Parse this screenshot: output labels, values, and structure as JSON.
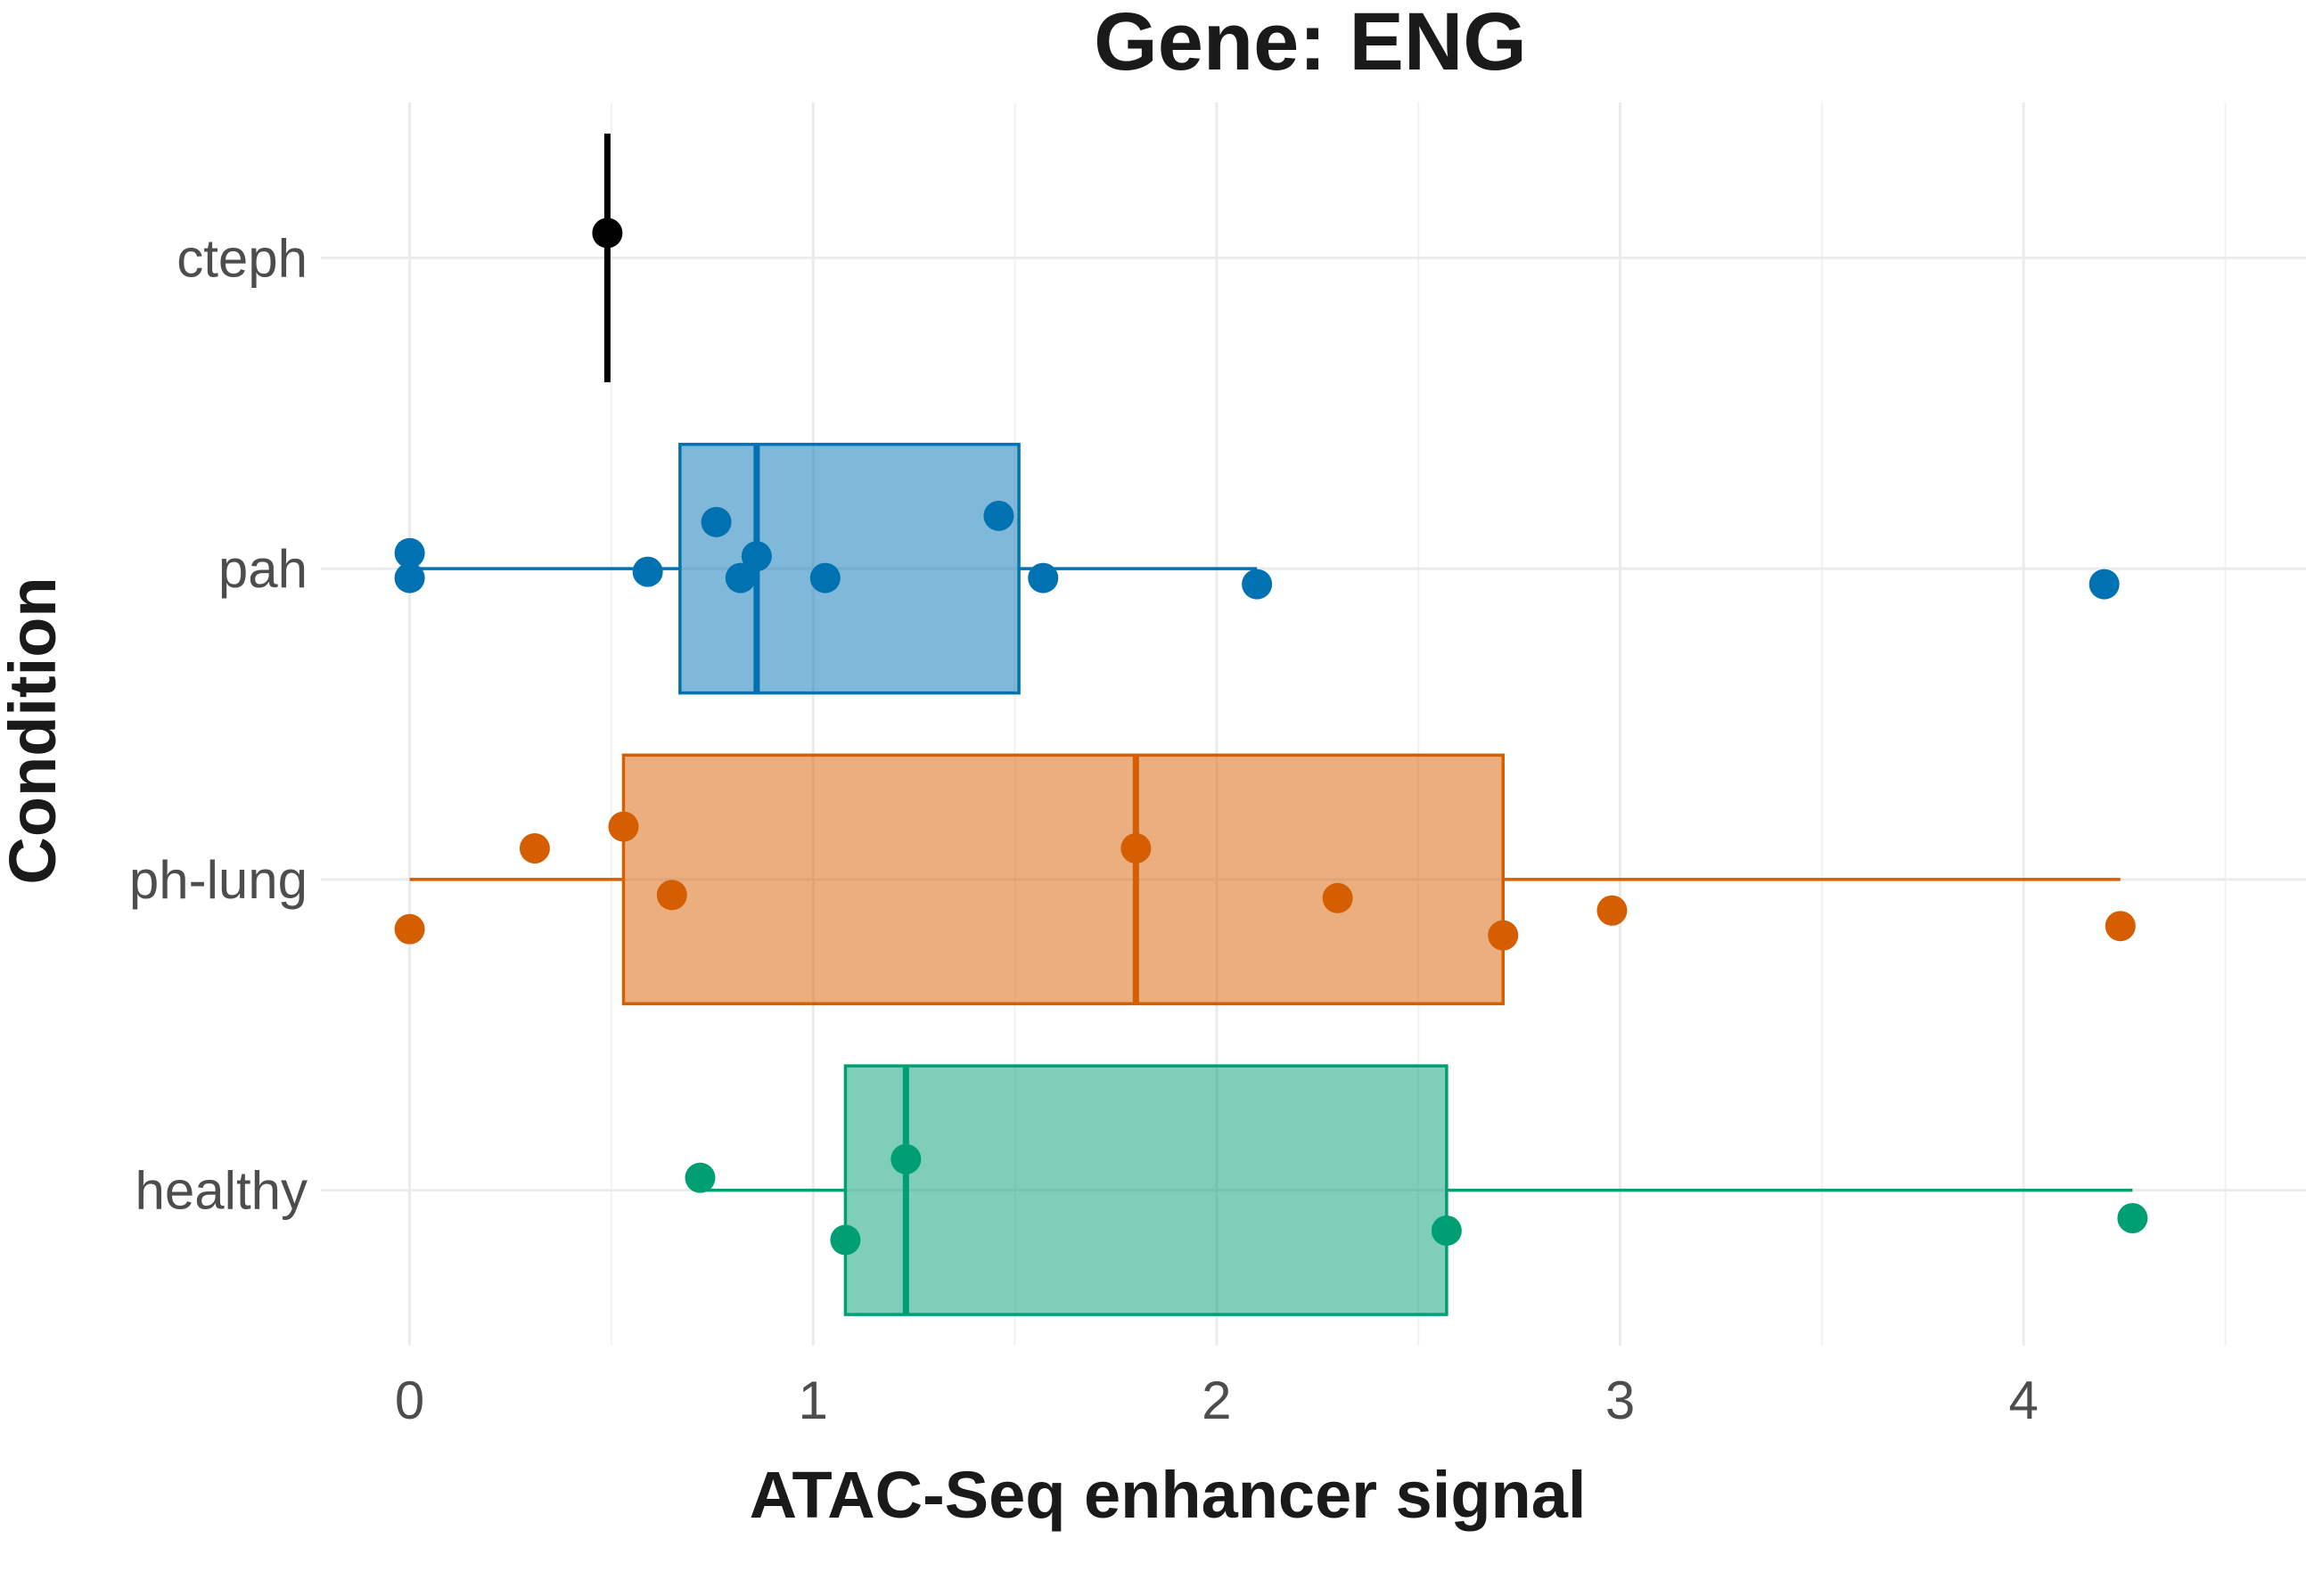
{
  "chart_data": {
    "type": "boxplot",
    "title": "Gene: ENG",
    "xlabel": "ATAC-Seq enhancer signal",
    "ylabel": "Condition",
    "xlim": [
      -0.22,
      4.7
    ],
    "x_ticks": [
      0,
      1,
      2,
      3,
      4
    ],
    "x_tick_labels": [
      "0",
      "1",
      "2",
      "3",
      "4"
    ],
    "orientation": "horizontal",
    "grid": true,
    "legend": "none",
    "categories": [
      "cteph",
      "pah",
      "ph-lung",
      "healthy"
    ],
    "series": [
      {
        "name": "cteph",
        "color": "#000000",
        "box": {
          "min": 0.49,
          "q1": 0.49,
          "median": 0.49,
          "q3": 0.49,
          "max": 0.49
        },
        "points": [
          {
            "x": 0.49,
            "jitter": 0.08
          }
        ]
      },
      {
        "name": "pah",
        "color": "#0072B2",
        "box": {
          "min": 0.0,
          "q1": 0.67,
          "median": 0.86,
          "q3": 1.51,
          "max": 2.1
        },
        "points": [
          {
            "x": 0.0,
            "jitter": 0.05
          },
          {
            "x": 0.0,
            "jitter": -0.03
          },
          {
            "x": 0.59,
            "jitter": -0.01
          },
          {
            "x": 0.76,
            "jitter": 0.15
          },
          {
            "x": 0.82,
            "jitter": -0.03
          },
          {
            "x": 0.86,
            "jitter": 0.04
          },
          {
            "x": 1.03,
            "jitter": -0.03
          },
          {
            "x": 1.46,
            "jitter": 0.17
          },
          {
            "x": 1.57,
            "jitter": -0.03
          },
          {
            "x": 2.1,
            "jitter": -0.05
          },
          {
            "x": 4.2,
            "jitter": -0.05
          }
        ]
      },
      {
        "name": "ph-lung",
        "color": "#D55E00",
        "box": {
          "min": 0.0,
          "q1": 0.53,
          "median": 1.8,
          "q3": 2.71,
          "max": 4.24
        },
        "points": [
          {
            "x": 0.0,
            "jitter": -0.16
          },
          {
            "x": 0.31,
            "jitter": 0.1
          },
          {
            "x": 0.53,
            "jitter": 0.17
          },
          {
            "x": 0.65,
            "jitter": -0.05
          },
          {
            "x": 1.8,
            "jitter": 0.1
          },
          {
            "x": 2.3,
            "jitter": -0.06
          },
          {
            "x": 2.71,
            "jitter": -0.18
          },
          {
            "x": 2.98,
            "jitter": -0.1
          },
          {
            "x": 4.24,
            "jitter": -0.15
          }
        ]
      },
      {
        "name": "healthy",
        "color": "#009E73",
        "box": {
          "min": 0.72,
          "q1": 1.08,
          "median": 1.23,
          "q3": 2.57,
          "max": 4.27
        },
        "points": [
          {
            "x": 0.72,
            "jitter": 0.04
          },
          {
            "x": 1.08,
            "jitter": -0.16
          },
          {
            "x": 1.23,
            "jitter": 0.1
          },
          {
            "x": 2.57,
            "jitter": -0.13
          },
          {
            "x": 4.27,
            "jitter": -0.09
          }
        ]
      }
    ]
  }
}
